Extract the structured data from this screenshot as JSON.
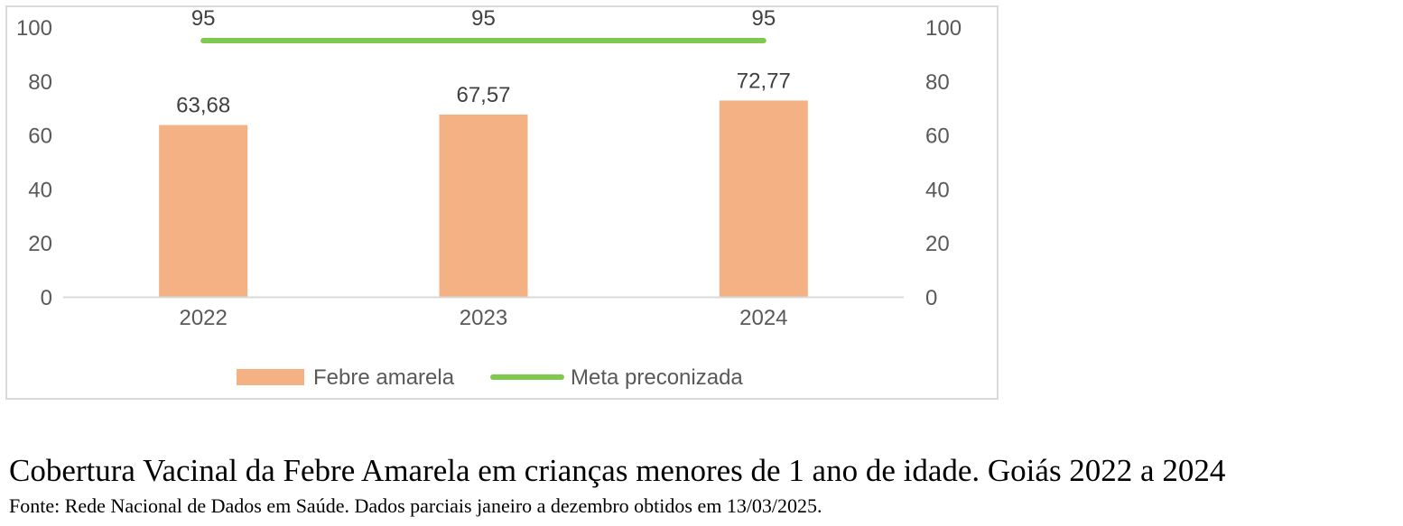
{
  "chart_data": {
    "type": "bar",
    "categories": [
      "2022",
      "2023",
      "2024"
    ],
    "series": [
      {
        "name": "Febre amarela",
        "type": "bar",
        "color": "#f4b183",
        "values": [
          63.68,
          67.57,
          72.77
        ],
        "labels": [
          "63,68",
          "67,57",
          "72,77"
        ]
      },
      {
        "name": "Meta preconizada",
        "type": "line",
        "color": "#7fc94f",
        "values": [
          95,
          95,
          95
        ],
        "labels": [
          "95",
          "95",
          "95"
        ]
      }
    ],
    "ylim": [
      0,
      100
    ],
    "yticks": [
      0,
      20,
      40,
      60,
      80,
      100
    ],
    "secondary_y": {
      "ylim": [
        0,
        100
      ],
      "ticks": [
        0,
        20,
        40,
        60,
        80,
        100
      ]
    },
    "grid": false,
    "legend_position": "bottom"
  },
  "caption": {
    "title": "Cobertura Vacinal da Febre Amarela em crianças menores de 1 ano de idade. Goiás 2022 a 2024",
    "source": "Fonte: Rede Nacional de Dados em Saúde. Dados parciais janeiro a dezembro obtidos em 13/03/2025."
  }
}
